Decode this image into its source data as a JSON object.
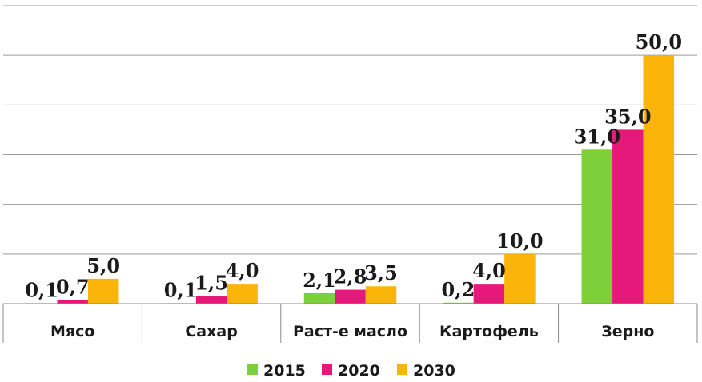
{
  "chart_data": {
    "type": "bar",
    "title": "",
    "xlabel": "",
    "ylabel": "",
    "ylim": [
      0,
      60
    ],
    "grid": true,
    "legend_position": "bottom",
    "categories": [
      "Мясо",
      "Сахар",
      "Раст-е масло",
      "Картофель",
      "Зерно"
    ],
    "series": [
      {
        "name": "2015",
        "color": "#7ed03b",
        "values": [
          0.1,
          0.1,
          2.1,
          0.2,
          31.0
        ],
        "labels": [
          "0,1",
          "0,1",
          "2,1",
          "0,2",
          "31,0"
        ]
      },
      {
        "name": "2020",
        "color": "#e6197a",
        "values": [
          0.7,
          1.5,
          2.8,
          4.0,
          35.0
        ],
        "labels": [
          "0,7",
          "1,5",
          "2,8",
          "4,0",
          "35,0"
        ]
      },
      {
        "name": "2030",
        "color": "#fbb40a",
        "values": [
          5.0,
          4.0,
          3.5,
          10.0,
          50.0
        ],
        "labels": [
          "5,0",
          "4,0",
          "3,5",
          "10,0",
          "50,0"
        ]
      }
    ]
  }
}
